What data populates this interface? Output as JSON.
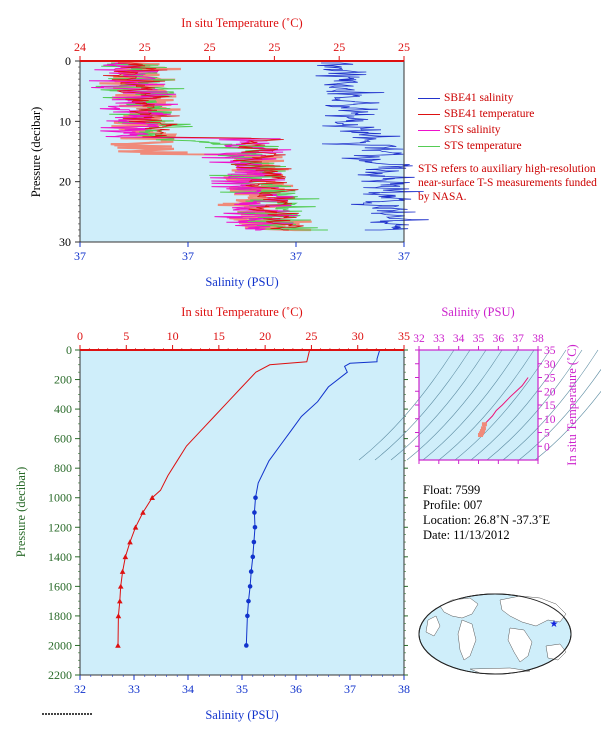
{
  "charts": {
    "top": {
      "top_axis_label": "In situ Temperature (˚C)",
      "top_ticks": [
        "24",
        "25",
        "25",
        "25",
        "25",
        "25"
      ],
      "bottom_axis_label": "Salinity (PSU)",
      "bottom_ticks": [
        "37",
        "37",
        "37",
        "37"
      ],
      "y_label": "Pressure (decibar)",
      "y_ticks": [
        "0",
        "10",
        "20",
        "30"
      ],
      "legend": [
        {
          "label": "SBE41 salinity",
          "color": "#2233cc"
        },
        {
          "label": "SBE41 temperature",
          "color": "#dd1111"
        },
        {
          "label": "STS salinity",
          "color": "#ee11cc"
        },
        {
          "label": "STS temperature",
          "color": "#55cc55"
        }
      ],
      "note": "STS refers to auxiliary high-resolution near-surface T-S measurements funded by NASA."
    },
    "main": {
      "top_axis_label": "In situ Temperature (˚C)",
      "top_ticks": [
        "0",
        "5",
        "10",
        "15",
        "20",
        "25",
        "30",
        "35"
      ],
      "bottom_axis_label": "Salinity (PSU)",
      "bottom_ticks": [
        "32",
        "33",
        "34",
        "35",
        "36",
        "37",
        "38"
      ],
      "y_label": "Pressure (decibar)",
      "y_ticks": [
        "0",
        "200",
        "400",
        "600",
        "800",
        "1000",
        "1200",
        "1400",
        "1600",
        "1800",
        "2000",
        "2200"
      ]
    },
    "ts": {
      "top_axis_label": "Salinity (PSU)",
      "top_ticks": [
        "32",
        "33",
        "34",
        "35",
        "36",
        "37",
        "38"
      ],
      "right_axis_label": "In situ Temperature (˚C)",
      "right_ticks": [
        "0",
        "5",
        "10",
        "15",
        "20",
        "25",
        "30",
        "35"
      ]
    }
  },
  "float_info": {
    "float": "Float:  7599",
    "profile": "Profile:  007",
    "location": "Location:  26.8˚N  -37.3˚E",
    "date": "Date:  11/13/2012"
  },
  "colors": {
    "salinity": "#1133cc",
    "temperature": "#dd1111",
    "plot_bg": "#cfeefa",
    "sts_salinity": "#ee11cc",
    "sts_temperature": "#55cc55",
    "ts_axis": "#cc22cc"
  },
  "chart_data": [
    {
      "type": "line",
      "id": "main-profile",
      "series": [
        {
          "name": "",
          "axis": "salinity",
          "x": [
            37.55,
            37.5,
            37.5,
            37.0,
            36.9,
            36.95,
            36.6,
            36.4,
            36.1,
            35.9,
            35.7,
            35.5,
            35.3,
            35.25,
            35.23,
            35.24,
            35.22,
            35.2,
            35.17,
            35.15,
            35.12,
            35.1,
            35.08
          ],
          "y": [
            0,
            60,
            80,
            90,
            110,
            150,
            250,
            350,
            450,
            550,
            650,
            750,
            900,
            1000,
            1100,
            1200,
            1300,
            1400,
            1500,
            1600,
            1700,
            1800,
            2000
          ]
        },
        {
          "name": "",
          "axis": "temperature",
          "x": [
            24.8,
            24.5,
            20.5,
            19.0,
            17.5,
            16.0,
            14.5,
            13.0,
            11.5,
            10.5,
            9.5,
            8.7,
            7.8,
            6.8,
            6.0,
            5.4,
            4.9,
            4.6,
            4.4,
            4.3,
            4.15,
            4.1
          ],
          "y": [
            0,
            80,
            100,
            150,
            250,
            350,
            450,
            550,
            650,
            750,
            850,
            950,
            1000,
            1100,
            1200,
            1300,
            1400,
            1500,
            1600,
            1700,
            1800,
            2000
          ]
        }
      ],
      "xlim_salinity": [
        32,
        38
      ],
      "xlim_temperature": [
        0,
        35
      ],
      "ylim": [
        2200,
        0
      ]
    },
    {
      "type": "scatter",
      "id": "ts-diagram",
      "series": [
        {
          "name": "",
          "x": [
            37.5,
            37.2,
            36.9,
            36.6,
            36.2,
            35.9,
            35.7,
            35.5,
            35.3,
            35.25,
            35.2,
            35.15,
            35.1
          ],
          "y": [
            25,
            22,
            20,
            18,
            15,
            13,
            11,
            9.5,
            8,
            6.5,
            5.5,
            4.7,
            4.1
          ]
        }
      ],
      "xlim": [
        32,
        38
      ],
      "ylim": [
        -5,
        35
      ]
    }
  ]
}
